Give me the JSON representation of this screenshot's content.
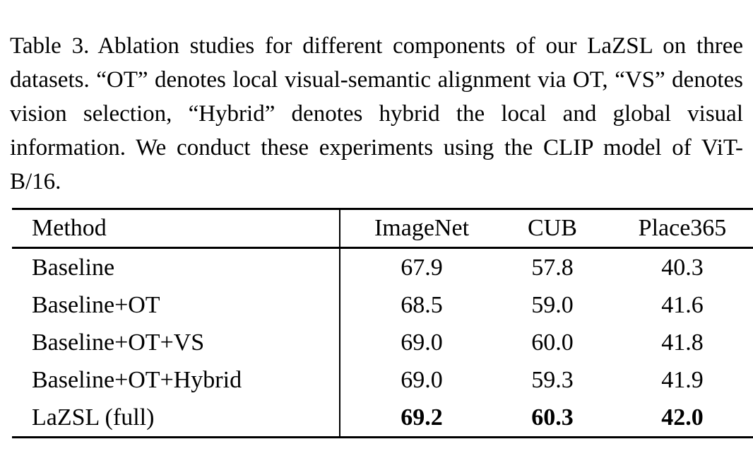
{
  "caption": {
    "label": "Table 3.",
    "text": "Ablation studies for different components of our LaZSL on three datasets. “OT” denotes local visual-semantic alignment via OT, “VS” denotes vision selection, “Hybrid” denotes hybrid the local and global visual information. We conduct these experiments using the CLIP model of ViT-B/16."
  },
  "table": {
    "columns": [
      "Method",
      "ImageNet",
      "CUB",
      "Place365"
    ],
    "rows": [
      {
        "method": "Baseline",
        "values": [
          "67.9",
          "57.8",
          "40.3"
        ],
        "bold": false
      },
      {
        "method": "Baseline+OT",
        "values": [
          "68.5",
          "59.0",
          "41.6"
        ],
        "bold": false
      },
      {
        "method": "Baseline+OT+VS",
        "values": [
          "69.0",
          "60.0",
          "41.8"
        ],
        "bold": false
      },
      {
        "method": "Baseline+OT+Hybrid",
        "values": [
          "69.0",
          "59.3",
          "41.9"
        ],
        "bold": false
      },
      {
        "method": "LaZSL (full)",
        "values": [
          "69.2",
          "60.3",
          "42.0"
        ],
        "bold": true
      }
    ]
  },
  "colors": {
    "text": "#000000",
    "background": "#ffffff",
    "rule": "#000000"
  }
}
